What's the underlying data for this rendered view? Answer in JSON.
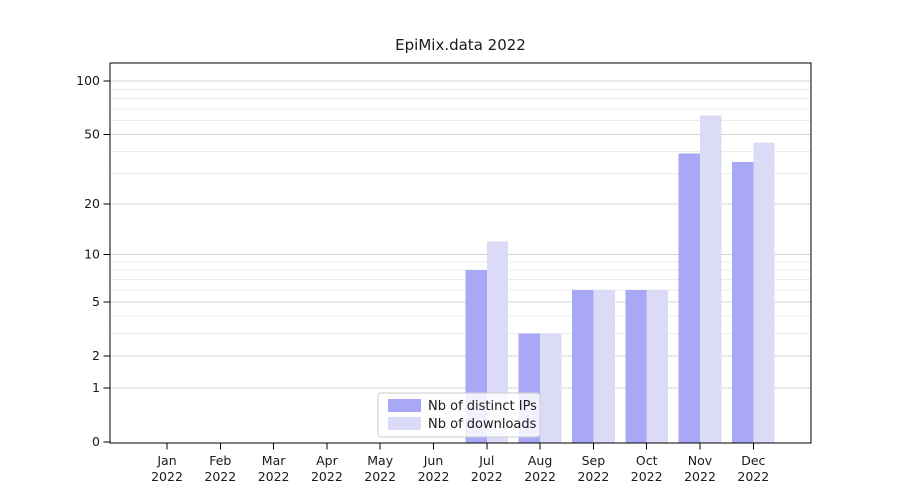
{
  "window": {
    "title": "EpiMix.data 2022"
  },
  "chart_data": {
    "type": "bar",
    "title": "EpiMix.data 2022",
    "categories": [
      "Jan 2022",
      "Feb 2022",
      "Mar 2022",
      "Apr 2022",
      "May 2022",
      "Jun 2022",
      "Jul 2022",
      "Aug 2022",
      "Sep 2022",
      "Oct 2022",
      "Nov 2022",
      "Dec 2022"
    ],
    "months": [
      "Jan",
      "Feb",
      "Mar",
      "Apr",
      "May",
      "Jun",
      "Jul",
      "Aug",
      "Sep",
      "Oct",
      "Nov",
      "Dec"
    ],
    "year_label": "2022",
    "series": [
      {
        "name": "Nb of distinct IPs",
        "color": "#a8a8f7",
        "values": [
          0,
          0,
          0,
          0,
          0,
          0,
          8,
          3,
          6,
          6,
          39,
          35
        ]
      },
      {
        "name": "Nb of downloads",
        "color": "#dbdbf8",
        "values": [
          0,
          0,
          0,
          0,
          0,
          0,
          12,
          3,
          6,
          6,
          64,
          45
        ]
      }
    ],
    "y_axis": {
      "scale": "log1p",
      "tick_values": [
        0,
        1,
        2,
        5,
        10,
        20,
        50,
        100
      ],
      "tick_labels": [
        "0",
        "1",
        "2",
        "5",
        "10",
        "20",
        "50",
        "100"
      ],
      "minor_grid_values": [
        3,
        4,
        6,
        7,
        8,
        9,
        30,
        40,
        60,
        70,
        80,
        90
      ],
      "ylim": [
        0,
        127
      ]
    },
    "xlabel": "",
    "ylabel": "",
    "grid": {
      "horizontal": true,
      "major_color": "#d6d6d6",
      "minor_color": "#ebebeb"
    },
    "legend": {
      "position": "inside-bottom-center",
      "entries": [
        "Nb of distinct IPs",
        "Nb of downloads"
      ]
    },
    "colors": {
      "axis": "#000000",
      "text": "#1a1a1a",
      "legend_border": "#cccccc",
      "legend_bg": "#ffffff"
    }
  }
}
